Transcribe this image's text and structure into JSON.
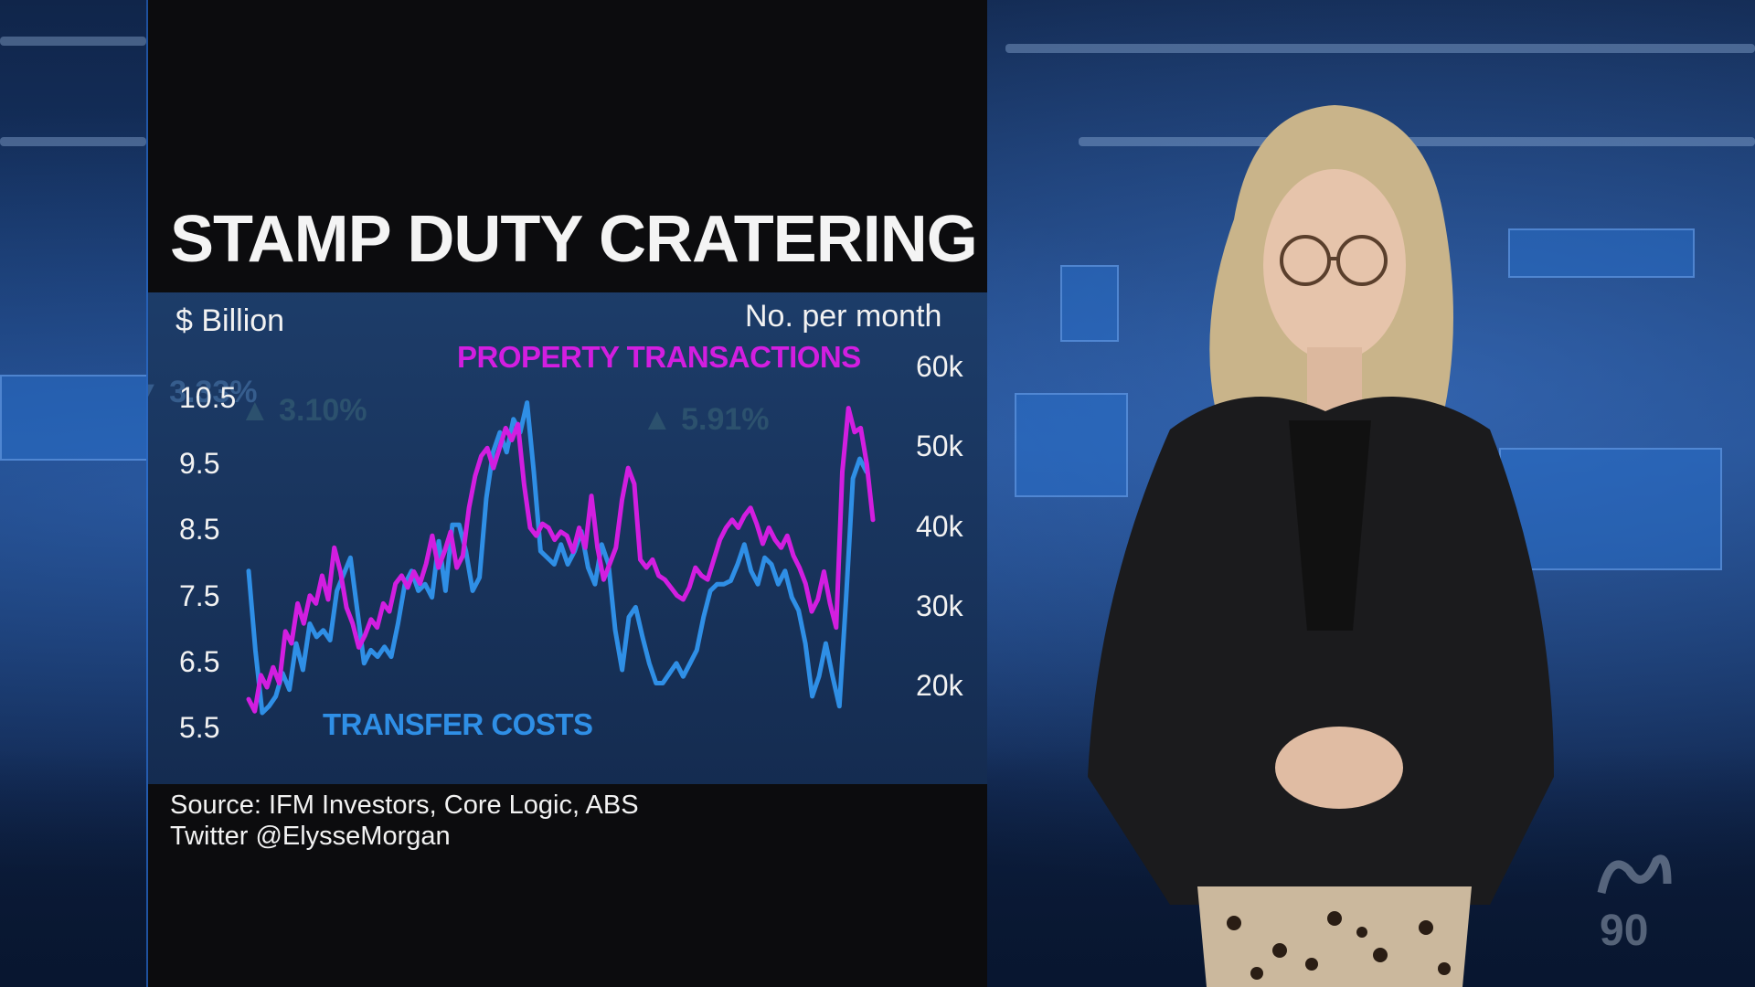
{
  "headline": "STAMP DUTY CRATERING",
  "source_line1": "Source: IFM Investors, Core Logic, ABS",
  "source_line2": "Twitter @ElysseMorgan",
  "logo_text": "ABC 90",
  "colors": {
    "transactions": "#d21ee0",
    "transfer_costs": "#2f8fe6",
    "background": "#0c0c0e",
    "chart_bg": "#1a3456"
  },
  "chart_data": {
    "type": "line",
    "title": "STAMP DUTY CRATERING",
    "left_axis_label": "$ Billion",
    "right_axis_label": "No. per month",
    "left_ticks": [
      "10.5",
      "9.5",
      "8.5",
      "7.5",
      "6.5",
      "5.5"
    ],
    "right_ticks": [
      "60k",
      "50k",
      "40k",
      "30k",
      "20k"
    ],
    "left_range": [
      5.5,
      10.5
    ],
    "right_range": [
      20000,
      60000
    ],
    "grid": false,
    "series": [
      {
        "name": "PROPERTY TRANSACTIONS",
        "axis": "right",
        "values": [
          18500,
          17000,
          21500,
          20000,
          22500,
          20500,
          27000,
          25500,
          30500,
          28000,
          31500,
          30500,
          34000,
          31000,
          37500,
          34500,
          30000,
          28000,
          25000,
          26500,
          28500,
          27500,
          30500,
          29500,
          33000,
          34000,
          32500,
          34500,
          33000,
          35500,
          39000,
          35000,
          37000,
          39500,
          35000,
          36500,
          42500,
          46500,
          49000,
          50000,
          47500,
          50000,
          52500,
          51000,
          53000,
          45500,
          40000,
          39000,
          40500,
          40000,
          38500,
          39500,
          39000,
          37000,
          40000,
          37500,
          44000,
          37500,
          33500,
          35500,
          37500,
          43500,
          47500,
          45500,
          36000,
          35000,
          36000,
          34000,
          33500,
          32500,
          31500,
          31000,
          32500,
          35000,
          34000,
          33500,
          36000,
          38500,
          40000,
          41000,
          40000,
          41500,
          42500,
          40500,
          38000,
          40000,
          38500,
          37500,
          39000,
          36500,
          35000,
          33000,
          29500,
          31000,
          34500,
          30500,
          27500,
          47000,
          55000,
          52000,
          52500,
          48000,
          41000
        ]
      },
      {
        "name": "TRANSFER COSTS",
        "axis": "left",
        "values": [
          7.9,
          6.7,
          5.75,
          5.85,
          6.0,
          6.35,
          6.1,
          6.8,
          6.4,
          7.1,
          6.9,
          7.0,
          6.85,
          7.6,
          7.85,
          8.1,
          7.3,
          6.5,
          6.7,
          6.6,
          6.75,
          6.6,
          7.1,
          7.7,
          7.9,
          7.6,
          7.7,
          7.5,
          8.35,
          7.6,
          8.6,
          8.6,
          8.2,
          7.6,
          7.8,
          9.0,
          9.7,
          10.0,
          9.7,
          10.2,
          10.0,
          10.45,
          9.4,
          8.2,
          8.1,
          8.0,
          8.3,
          8.0,
          8.2,
          8.5,
          7.95,
          7.7,
          8.3,
          8.0,
          7.0,
          6.4,
          7.2,
          7.35,
          6.9,
          6.5,
          6.2,
          6.2,
          6.35,
          6.5,
          6.3,
          6.5,
          6.7,
          7.2,
          7.6,
          7.7,
          7.7,
          7.75,
          8.0,
          8.3,
          7.9,
          7.7,
          8.1,
          8.0,
          7.7,
          7.9,
          7.5,
          7.3,
          6.8,
          6.0,
          6.3,
          6.8,
          6.3,
          5.85,
          7.5,
          9.3,
          9.6,
          9.4
        ]
      }
    ]
  }
}
